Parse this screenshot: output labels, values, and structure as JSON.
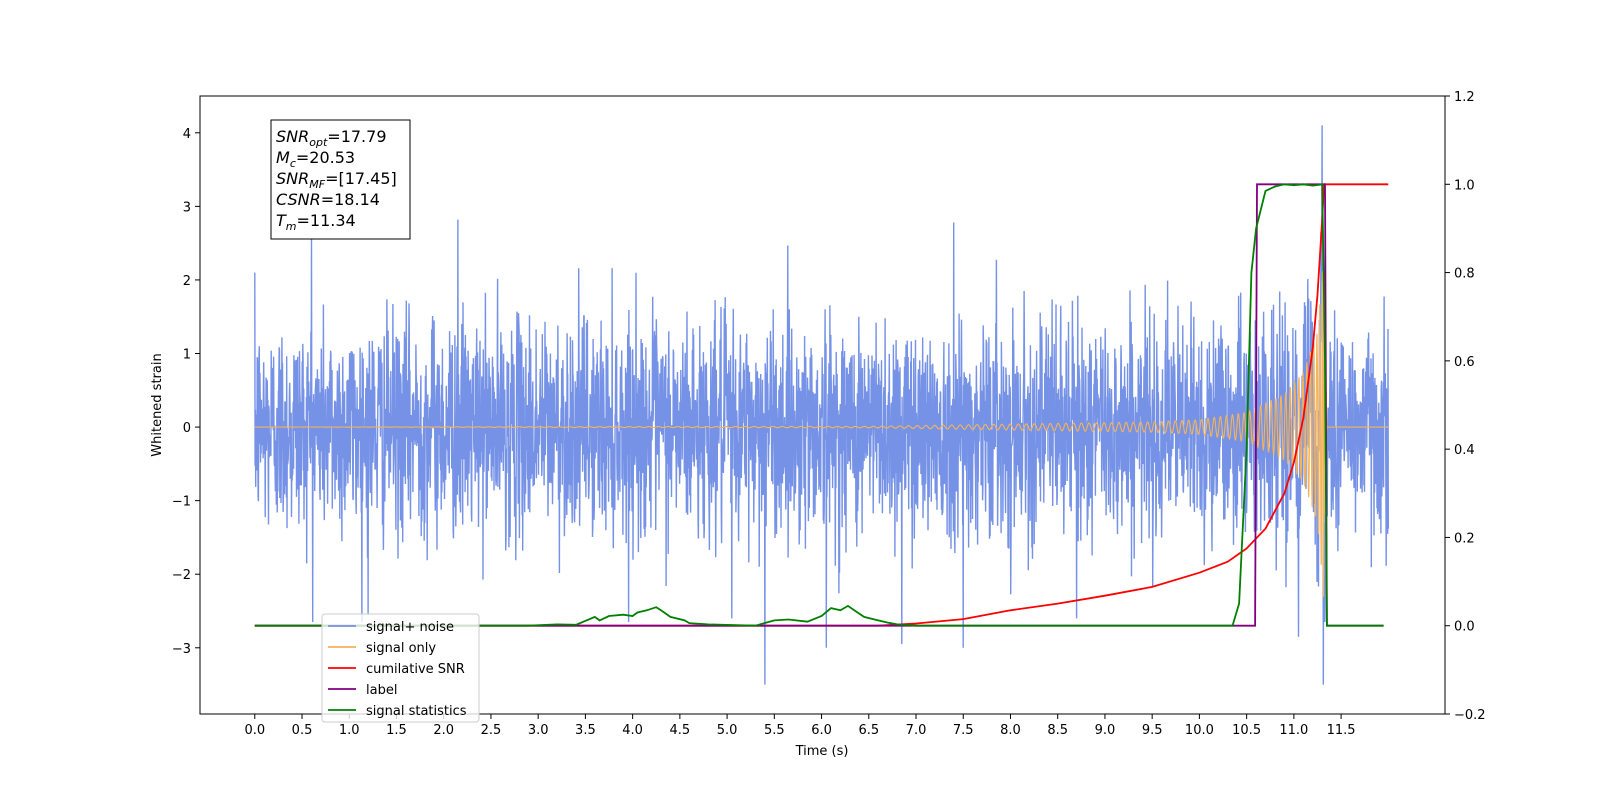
{
  "chart_data": {
    "type": "line",
    "xlabel": "Time (s)",
    "ylabel": "Whitened strain",
    "xlim": [
      -0.58,
      12.6
    ],
    "ylim": [
      -3.9,
      4.5
    ],
    "y2lim": [
      -0.2,
      1.2
    ],
    "x_ticks": [
      "0.0",
      "0.5",
      "1.0",
      "1.5",
      "2.0",
      "2.5",
      "3.0",
      "3.5",
      "4.0",
      "4.5",
      "5.0",
      "5.5",
      "6.0",
      "6.5",
      "7.0",
      "7.5",
      "8.0",
      "8.5",
      "9.0",
      "9.5",
      "10.0",
      "10.5",
      "11.0",
      "11.5"
    ],
    "y_ticks": [
      "−3",
      "−2",
      "−1",
      "0",
      "1",
      "2",
      "3",
      "4"
    ],
    "y2_ticks": [
      "−0.2",
      "0.0",
      "0.2",
      "0.4",
      "0.6",
      "0.8",
      "1.0",
      "1.2"
    ],
    "legend_position": "lower-left",
    "annotation": {
      "lines": [
        {
          "main": "SNR",
          "sub": "opt",
          "value": "=17.79"
        },
        {
          "main": "M",
          "sub": "c",
          "value": "=20.53"
        },
        {
          "main": "SNR",
          "sub": "MF",
          "value": "=[17.45]"
        },
        {
          "main": "CSNR",
          "sub": "",
          "value": "=18.14"
        },
        {
          "main": "T",
          "sub": "m",
          "value": "=11.34"
        }
      ]
    },
    "series": [
      {
        "name": "signal+ noise",
        "axis": "left",
        "color": "#7592e6",
        "t_start": 0.0,
        "t_end": 12.0,
        "noise_sigma": 0.72,
        "spikes": [
          [
            0.0,
            2.1
          ],
          [
            0.6,
            2.6
          ],
          [
            1.2,
            -2.55
          ],
          [
            2.15,
            2.82
          ],
          [
            5.4,
            -3.5
          ],
          [
            5.05,
            -2.6
          ],
          [
            6.05,
            -3.0
          ],
          [
            6.85,
            -2.95
          ],
          [
            7.4,
            2.78
          ],
          [
            7.5,
            -3.0
          ],
          [
            8.7,
            -2.6
          ],
          [
            11.05,
            -2.85
          ],
          [
            11.3,
            4.1
          ],
          [
            11.31,
            -3.5
          ]
        ]
      },
      {
        "name": "signal only",
        "axis": "left",
        "color": "#f5b35a",
        "amplitude_envelope": [
          [
            0,
            0.0
          ],
          [
            6.5,
            0.01
          ],
          [
            8.5,
            0.05
          ],
          [
            9.5,
            0.07
          ],
          [
            10.0,
            0.1
          ],
          [
            10.5,
            0.2
          ],
          [
            10.9,
            0.45
          ],
          [
            11.1,
            0.75
          ],
          [
            11.25,
            1.3
          ],
          [
            11.32,
            2.4
          ],
          [
            11.35,
            0.0
          ],
          [
            12.0,
            0.0
          ]
        ]
      },
      {
        "name": "cumilative SNR",
        "axis": "right",
        "color": "#ff0000",
        "x": [
          0,
          6.6,
          7.0,
          7.5,
          8.0,
          8.5,
          9.0,
          9.5,
          10.0,
          10.3,
          10.5,
          10.7,
          10.9,
          11.0,
          11.1,
          11.2,
          11.25,
          11.3,
          11.32,
          11.33,
          12.0
        ],
        "y": [
          0,
          0,
          0.005,
          0.015,
          0.035,
          0.05,
          0.068,
          0.088,
          0.12,
          0.145,
          0.175,
          0.22,
          0.3,
          0.37,
          0.47,
          0.63,
          0.75,
          0.92,
          1.0,
          1.0,
          1.0
        ]
      },
      {
        "name": "label",
        "axis": "right",
        "color": "#800080",
        "x": [
          0,
          10.59,
          10.61,
          11.33,
          11.35,
          11.95
        ],
        "y": [
          0,
          0,
          1.0,
          1.0,
          0,
          0
        ]
      },
      {
        "name": "signal statistics",
        "axis": "right",
        "color": "#008000",
        "x": [
          0,
          2.9,
          3.2,
          3.4,
          3.6,
          3.65,
          3.75,
          3.9,
          4.0,
          4.05,
          4.15,
          4.25,
          4.3,
          4.4,
          4.55,
          4.6,
          4.8,
          5.3,
          5.5,
          5.65,
          5.85,
          6.0,
          6.1,
          6.2,
          6.28,
          6.38,
          6.45,
          6.6,
          6.7,
          6.8,
          7.0,
          10.35,
          10.42,
          10.5,
          10.55,
          10.6,
          10.7,
          10.8,
          10.9,
          11.0,
          11.1,
          11.2,
          11.3,
          11.33,
          11.35,
          11.95
        ],
        "y": [
          0,
          0,
          0.003,
          0.002,
          0.02,
          0.012,
          0.022,
          0.025,
          0.022,
          0.03,
          0.035,
          0.042,
          0.035,
          0.02,
          0.012,
          0.006,
          0.003,
          0.0,
          0.012,
          0.014,
          0.009,
          0.022,
          0.04,
          0.035,
          0.045,
          0.03,
          0.02,
          0.012,
          0.007,
          0.003,
          0.0,
          0.0,
          0.05,
          0.4,
          0.8,
          0.9,
          0.985,
          0.995,
          1.0,
          0.998,
          1.0,
          0.997,
          1.0,
          0.6,
          0.0,
          0.0
        ]
      }
    ]
  }
}
